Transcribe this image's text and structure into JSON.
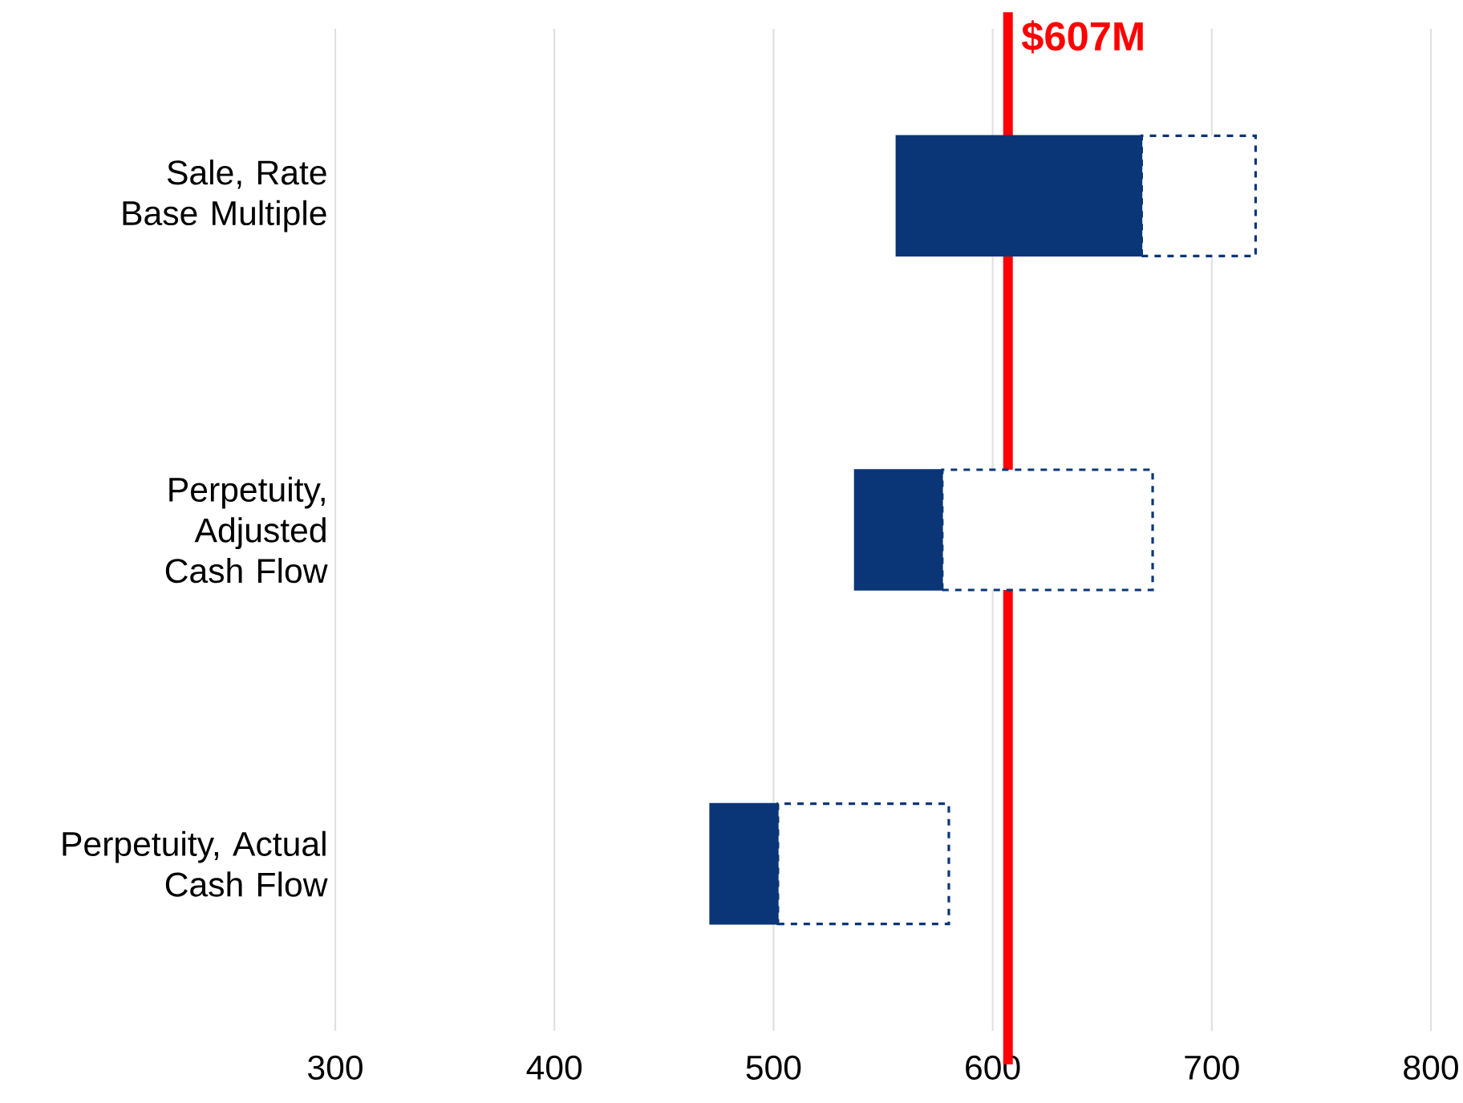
{
  "chart_data": {
    "type": "bar",
    "orientation": "horizontal",
    "categories": [
      "Sale, Rate Base Multiple",
      "Perpetuity, Adjusted Cash Flow",
      "Perpetuity, Actual Cash Flow"
    ],
    "series": [
      {
        "color": "#0a3678",
        "base": [
          556,
          537,
          471
        ],
        "values": [
          112,
          40,
          31
        ]
      },
      {
        "color": "#0a3678",
        "line_style": "dashed",
        "base": [
          668,
          577,
          502
        ],
        "values": [
          52,
          96,
          78
        ]
      }
    ],
    "xlim": [
      300,
      800
    ],
    "xticks": [
      300,
      400,
      500,
      600,
      700,
      800
    ],
    "grid": "x",
    "ref_lines": [
      {
        "axis": "x",
        "value": 607,
        "label": "$607M",
        "color": "#ff0000"
      }
    ]
  }
}
